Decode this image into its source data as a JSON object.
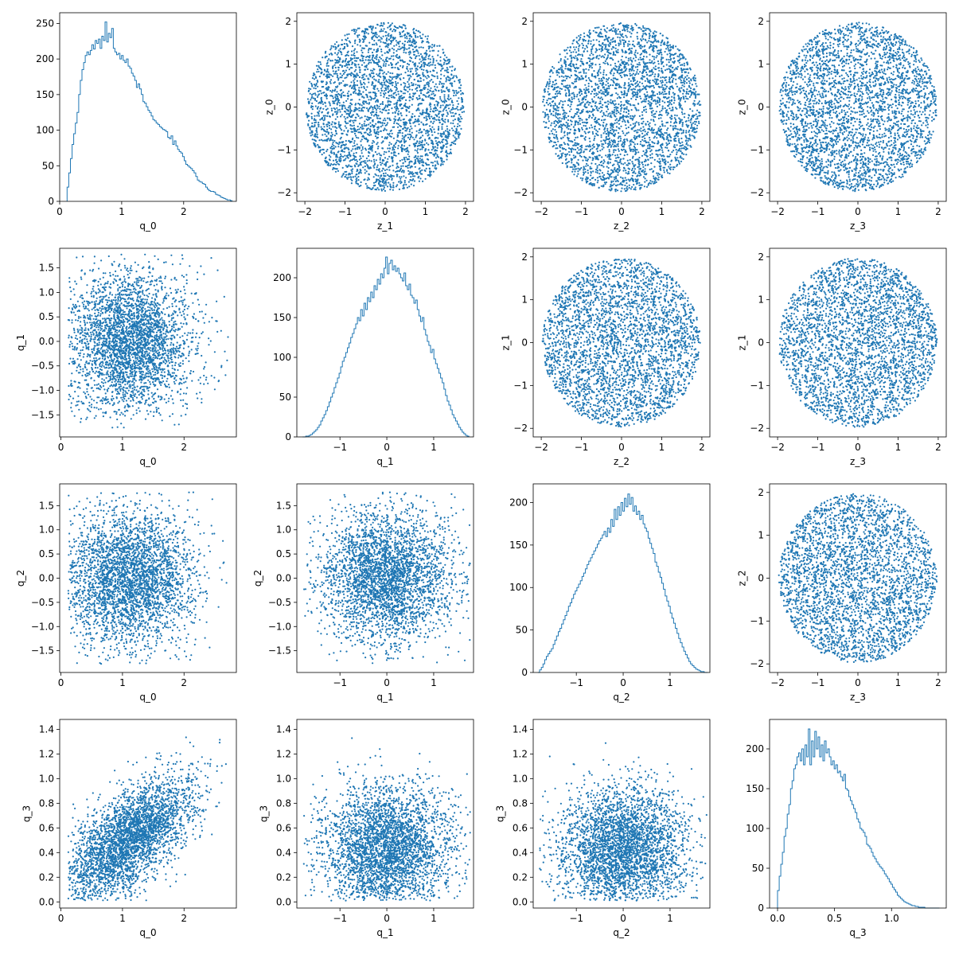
{
  "figure": {
    "marker_color": "#1f77b4",
    "axes_color": "#000000",
    "background": "#ffffff"
  },
  "chart_data": [
    {
      "type": "histogram",
      "row": 0,
      "col": 0,
      "xlabel": "q_0",
      "ylabel": "",
      "xlim": [
        0,
        2.85
      ],
      "ylim": [
        0,
        265
      ],
      "xticks": [
        0,
        1,
        2
      ],
      "yticks": [
        0,
        50,
        100,
        150,
        200,
        250
      ],
      "hist_x_range": [
        0.12,
        2.78
      ],
      "hist_bins": 100,
      "hist_counts": [
        20,
        40,
        60,
        80,
        95,
        110,
        125,
        150,
        170,
        185,
        195,
        205,
        210,
        206,
        212,
        220,
        214,
        226,
        222,
        228,
        215,
        232,
        226,
        252,
        224,
        236,
        230,
        243,
        215,
        210,
        206,
        208,
        200,
        205,
        198,
        195,
        200,
        190,
        187,
        180,
        176,
        170,
        160,
        165,
        158,
        150,
        140,
        138,
        133,
        128,
        125,
        120,
        115,
        113,
        110,
        108,
        105,
        103,
        101,
        100,
        98,
        90,
        88,
        92,
        80,
        85,
        78,
        73,
        70,
        68,
        63,
        57,
        52,
        50,
        48,
        46,
        43,
        40,
        35,
        30,
        28,
        27,
        25,
        24,
        20,
        17,
        15,
        14,
        14,
        13,
        10,
        9,
        8,
        6,
        5,
        4,
        3,
        2,
        2,
        1
      ]
    },
    {
      "type": "scatter",
      "row": 0,
      "col": 1,
      "xlabel": "z_1",
      "ylabel": "z_0",
      "xlim": [
        -2.2,
        2.2
      ],
      "ylim": [
        -2.2,
        2.2
      ],
      "xticks": [
        -2,
        -1,
        0,
        1,
        2
      ],
      "yticks": [
        -2,
        -1,
        0,
        1,
        2
      ],
      "dist": {
        "kind": "disk",
        "seed": 11,
        "n": 3200,
        "cx": 0,
        "cy": 0,
        "rx": 1.97,
        "ry": 1.97
      }
    },
    {
      "type": "scatter",
      "row": 0,
      "col": 2,
      "xlabel": "z_2",
      "ylabel": "z_0",
      "xlim": [
        -2.2,
        2.2
      ],
      "ylim": [
        -2.2,
        2.2
      ],
      "xticks": [
        -2,
        -1,
        0,
        1,
        2
      ],
      "yticks": [
        -2,
        -1,
        0,
        1,
        2
      ],
      "dist": {
        "kind": "disk",
        "seed": 12,
        "n": 3200,
        "cx": 0,
        "cy": 0,
        "rx": 1.97,
        "ry": 1.97
      }
    },
    {
      "type": "scatter",
      "row": 0,
      "col": 3,
      "xlabel": "z_3",
      "ylabel": "z_0",
      "xlim": [
        -2.2,
        2.2
      ],
      "ylim": [
        -2.2,
        2.2
      ],
      "xticks": [
        -2,
        -1,
        0,
        1,
        2
      ],
      "yticks": [
        -2,
        -1,
        0,
        1,
        2
      ],
      "dist": {
        "kind": "disk",
        "seed": 13,
        "n": 3200,
        "cx": 0,
        "cy": 0,
        "rx": 1.97,
        "ry": 1.97
      }
    },
    {
      "type": "scatter",
      "row": 1,
      "col": 0,
      "xlabel": "q_0",
      "ylabel": "q_1",
      "xlim": [
        -0.02,
        2.85
      ],
      "ylim": [
        -1.95,
        1.9
      ],
      "xticks": [
        0,
        1,
        2
      ],
      "yticks": [
        -1.5,
        -1.0,
        -0.5,
        0.0,
        0.5,
        1.0,
        1.5
      ],
      "dist": {
        "kind": "qpair",
        "seed": 21,
        "n": 3200,
        "a": "q0",
        "b": "qn"
      }
    },
    {
      "type": "histogram",
      "row": 1,
      "col": 1,
      "xlabel": "q_1",
      "ylabel": "",
      "xlim": [
        -1.92,
        1.85
      ],
      "ylim": [
        0,
        237
      ],
      "xticks": [
        -1,
        0,
        1
      ],
      "yticks": [
        0,
        50,
        100,
        150,
        200
      ],
      "hist_x_range": [
        -1.8,
        1.75
      ],
      "hist_bins": 100,
      "hist_counts": [
        0,
        0,
        1,
        1,
        2,
        3,
        5,
        7,
        9,
        12,
        15,
        20,
        24,
        28,
        33,
        38,
        44,
        50,
        55,
        62,
        68,
        74,
        80,
        88,
        95,
        100,
        106,
        112,
        118,
        125,
        130,
        136,
        142,
        150,
        146,
        160,
        152,
        168,
        160,
        175,
        170,
        182,
        175,
        190,
        185,
        198,
        192,
        205,
        200,
        212,
        226,
        205,
        218,
        222,
        210,
        215,
        208,
        212,
        205,
        200,
        196,
        206,
        190,
        185,
        192,
        178,
        175,
        168,
        172,
        160,
        152,
        145,
        150,
        135,
        128,
        120,
        115,
        106,
        110,
        98,
        92,
        86,
        80,
        74,
        68,
        60,
        52,
        45,
        40,
        34,
        28,
        24,
        20,
        16,
        12,
        9,
        6,
        4,
        2,
        1
      ]
    },
    {
      "type": "scatter",
      "row": 1,
      "col": 2,
      "xlabel": "z_2",
      "ylabel": "z_1",
      "xlim": [
        -2.2,
        2.2
      ],
      "ylim": [
        -2.2,
        2.2
      ],
      "xticks": [
        -2,
        -1,
        0,
        1,
        2
      ],
      "yticks": [
        -2,
        -1,
        0,
        1,
        2
      ],
      "dist": {
        "kind": "disk",
        "seed": 22,
        "n": 3200,
        "cx": 0,
        "cy": 0,
        "rx": 1.97,
        "ry": 1.97
      }
    },
    {
      "type": "scatter",
      "row": 1,
      "col": 3,
      "xlabel": "z_3",
      "ylabel": "z_1",
      "xlim": [
        -2.2,
        2.2
      ],
      "ylim": [
        -2.2,
        2.2
      ],
      "xticks": [
        -2,
        -1,
        0,
        1,
        2
      ],
      "yticks": [
        -2,
        -1,
        0,
        1,
        2
      ],
      "dist": {
        "kind": "disk",
        "seed": 23,
        "n": 3200,
        "cx": 0,
        "cy": 0,
        "rx": 1.97,
        "ry": 1.97
      }
    },
    {
      "type": "scatter",
      "row": 2,
      "col": 0,
      "xlabel": "q_0",
      "ylabel": "q_2",
      "xlim": [
        -0.02,
        2.85
      ],
      "ylim": [
        -1.95,
        1.95
      ],
      "xticks": [
        0,
        1,
        2
      ],
      "yticks": [
        -1.5,
        -1.0,
        -0.5,
        0.0,
        0.5,
        1.0,
        1.5
      ],
      "dist": {
        "kind": "qpair",
        "seed": 31,
        "n": 3200,
        "a": "q0",
        "b": "qn"
      }
    },
    {
      "type": "scatter",
      "row": 2,
      "col": 1,
      "xlabel": "q_1",
      "ylabel": "q_2",
      "xlim": [
        -1.92,
        1.85
      ],
      "ylim": [
        -1.95,
        1.95
      ],
      "xticks": [
        -1,
        0,
        1
      ],
      "yticks": [
        -1.5,
        -1.0,
        -0.5,
        0.0,
        0.5,
        1.0,
        1.5
      ],
      "dist": {
        "kind": "qpair",
        "seed": 32,
        "n": 3200,
        "a": "qn",
        "b": "qn"
      }
    },
    {
      "type": "histogram",
      "row": 2,
      "col": 2,
      "xlabel": "q_2",
      "ylabel": "",
      "xlim": [
        -1.92,
        1.85
      ],
      "ylim": [
        0,
        222
      ],
      "xticks": [
        -1,
        0,
        1
      ],
      "yticks": [
        0,
        50,
        100,
        150,
        200
      ],
      "hist_x_range": [
        -1.82,
        1.8
      ],
      "hist_bins": 100,
      "hist_counts": [
        0,
        3,
        6,
        10,
        15,
        19,
        22,
        25,
        28,
        33,
        38,
        43,
        48,
        52,
        57,
        62,
        67,
        72,
        78,
        82,
        87,
        92,
        96,
        100,
        104,
        108,
        113,
        117,
        122,
        127,
        131,
        135,
        139,
        143,
        147,
        151,
        155,
        158,
        162,
        166,
        160,
        170,
        165,
        180,
        172,
        192,
        180,
        195,
        185,
        200,
        190,
        205,
        195,
        210,
        198,
        206,
        190,
        196,
        186,
        190,
        180,
        185,
        175,
        170,
        166,
        158,
        152,
        146,
        140,
        130,
        125,
        118,
        112,
        105,
        98,
        90,
        84,
        78,
        70,
        64,
        58,
        52,
        46,
        40,
        35,
        30,
        25,
        21,
        17,
        13,
        10,
        8,
        6,
        4,
        3,
        2,
        1,
        1,
        0,
        0
      ]
    },
    {
      "type": "scatter",
      "row": 2,
      "col": 3,
      "xlabel": "z_3",
      "ylabel": "z_2",
      "xlim": [
        -2.2,
        2.2
      ],
      "ylim": [
        -2.2,
        2.2
      ],
      "xticks": [
        -2,
        -1,
        0,
        1,
        2
      ],
      "yticks": [
        -2,
        -1,
        0,
        1,
        2
      ],
      "dist": {
        "kind": "disk",
        "seed": 33,
        "n": 3200,
        "cx": 0,
        "cy": 0,
        "rx": 1.97,
        "ry": 1.97
      }
    },
    {
      "type": "scatter",
      "row": 3,
      "col": 0,
      "xlabel": "q_0",
      "ylabel": "q_3",
      "xlim": [
        -0.02,
        2.85
      ],
      "ylim": [
        -0.05,
        1.48
      ],
      "xticks": [
        0,
        1,
        2
      ],
      "yticks": [
        0.0,
        0.2,
        0.4,
        0.6,
        0.8,
        1.0,
        1.2,
        1.4
      ],
      "dist": {
        "kind": "qpair",
        "seed": 41,
        "n": 3200,
        "a": "q0",
        "b": "q3c"
      }
    },
    {
      "type": "scatter",
      "row": 3,
      "col": 1,
      "xlabel": "q_1",
      "ylabel": "q_3",
      "xlim": [
        -1.92,
        1.85
      ],
      "ylim": [
        -0.05,
        1.48
      ],
      "xticks": [
        -1,
        0,
        1
      ],
      "yticks": [
        0.0,
        0.2,
        0.4,
        0.6,
        0.8,
        1.0,
        1.2,
        1.4
      ],
      "dist": {
        "kind": "qpair",
        "seed": 42,
        "n": 3200,
        "a": "qn",
        "b": "q3"
      }
    },
    {
      "type": "scatter",
      "row": 3,
      "col": 2,
      "xlabel": "q_2",
      "ylabel": "q_3",
      "xlim": [
        -1.92,
        1.85
      ],
      "ylim": [
        -0.05,
        1.48
      ],
      "xticks": [
        -1,
        0,
        1
      ],
      "yticks": [
        0.0,
        0.2,
        0.4,
        0.6,
        0.8,
        1.0,
        1.2,
        1.4
      ],
      "dist": {
        "kind": "qpair",
        "seed": 43,
        "n": 3200,
        "a": "qn",
        "b": "q3"
      }
    },
    {
      "type": "histogram",
      "row": 3,
      "col": 3,
      "xlabel": "q_3",
      "ylabel": "",
      "xlim": [
        -0.07,
        1.48
      ],
      "ylim": [
        0,
        237
      ],
      "xticks": [
        0.0,
        0.5,
        1.0
      ],
      "yticks": [
        0,
        50,
        100,
        150,
        200
      ],
      "hist_x_range": [
        0.0,
        1.42
      ],
      "hist_bins": 100,
      "hist_counts": [
        22,
        40,
        55,
        70,
        90,
        100,
        118,
        130,
        150,
        160,
        175,
        180,
        190,
        195,
        185,
        200,
        180,
        205,
        190,
        225,
        180,
        210,
        190,
        222,
        200,
        215,
        190,
        205,
        185,
        210,
        195,
        200,
        190,
        180,
        185,
        175,
        180,
        170,
        172,
        165,
        160,
        168,
        150,
        148,
        140,
        135,
        130,
        125,
        120,
        112,
        108,
        100,
        98,
        95,
        90,
        80,
        78,
        75,
        70,
        65,
        62,
        58,
        55,
        52,
        50,
        47,
        43,
        40,
        37,
        33,
        30,
        26,
        23,
        20,
        16,
        14,
        12,
        10,
        8,
        7,
        6,
        5,
        4,
        3,
        3,
        2,
        2,
        1,
        1,
        1,
        1,
        0,
        0,
        0,
        0,
        0,
        0,
        0,
        0,
        0
      ]
    }
  ]
}
